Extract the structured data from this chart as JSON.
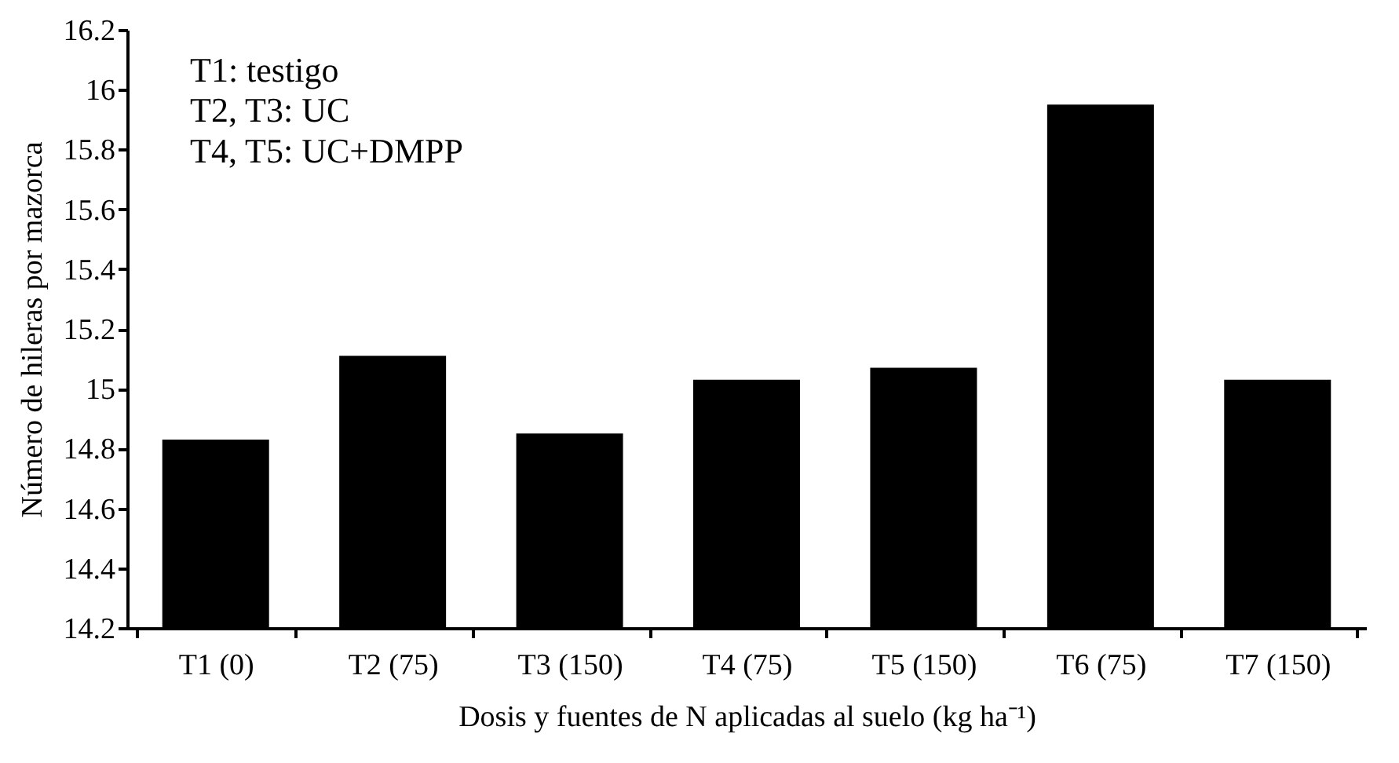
{
  "chart_data": {
    "type": "bar",
    "categories": [
      "T1 (0)",
      "T2 (75)",
      "T3 (150)",
      "T4 (75)",
      "T5 (150)",
      "T6 (75)",
      "T7 (150)"
    ],
    "values": [
      14.83,
      15.11,
      14.85,
      15.03,
      15.07,
      15.95,
      15.03
    ],
    "color": "#000000",
    "xlabel": "Dosis y fuentes de N aplicadas al suelo (kg ha⁻¹)",
    "ylabel": "Número de hileras por mazorca",
    "ylim": [
      14.2,
      16.2
    ],
    "yticks": [
      14.2,
      14.4,
      14.6,
      14.8,
      15,
      15.2,
      15.4,
      15.6,
      15.8,
      16,
      16.2
    ],
    "annotations": [
      "T1: testigo",
      "T2, T3: UC",
      "T4, T5: UC+DMPP"
    ],
    "grid": false
  }
}
